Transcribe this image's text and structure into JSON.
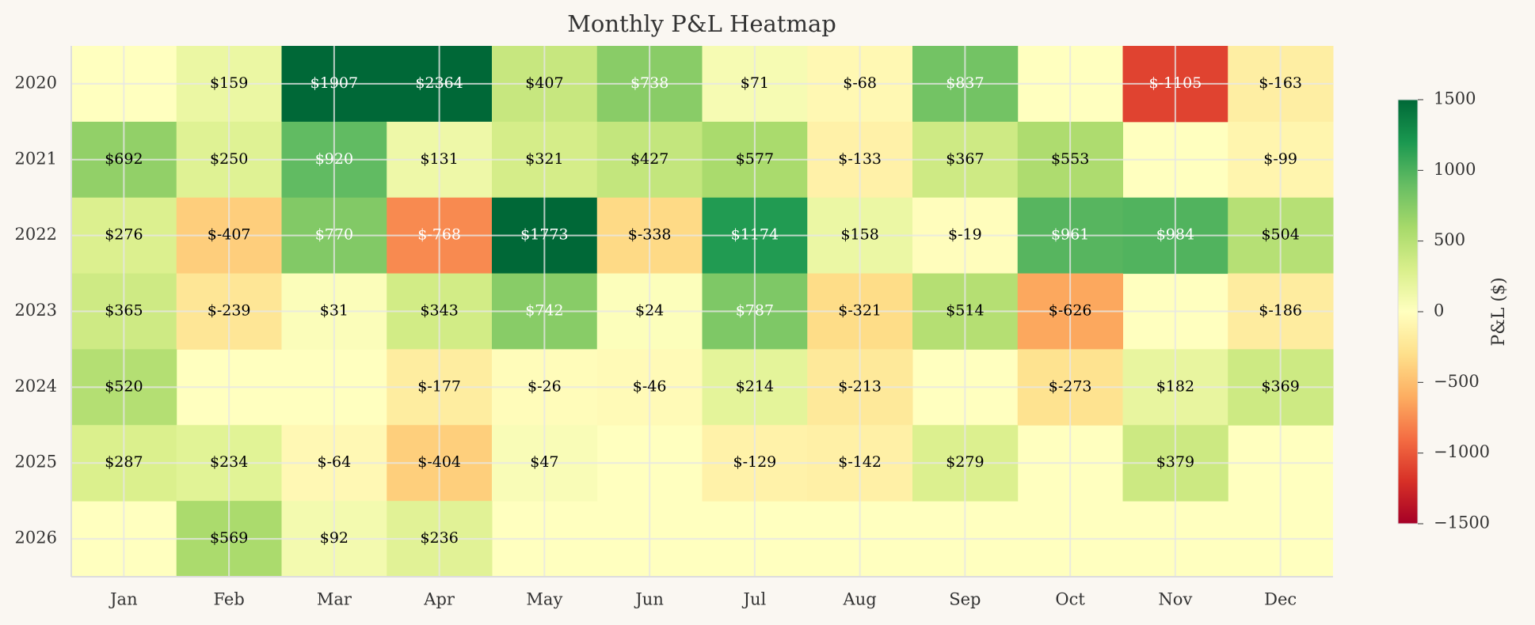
{
  "chart_data": {
    "type": "heatmap",
    "title": "Monthly P&L Heatmap",
    "x_categories": [
      "Jan",
      "Feb",
      "Mar",
      "Apr",
      "May",
      "Jun",
      "Jul",
      "Aug",
      "Sep",
      "Oct",
      "Nov",
      "Dec"
    ],
    "y_categories": [
      "2020",
      "2021",
      "2022",
      "2023",
      "2024",
      "2025",
      "2026"
    ],
    "values": [
      [
        null,
        159,
        1907,
        2364,
        407,
        738,
        71,
        -68,
        837,
        null,
        -1105,
        -163
      ],
      [
        692,
        250,
        920,
        131,
        321,
        427,
        577,
        -133,
        367,
        553,
        null,
        -99
      ],
      [
        276,
        -407,
        770,
        -768,
        1773,
        -338,
        1174,
        158,
        -19,
        961,
        984,
        504
      ],
      [
        365,
        -239,
        31,
        343,
        742,
        24,
        787,
        -321,
        514,
        -626,
        null,
        -186
      ],
      [
        520,
        null,
        null,
        -177,
        -26,
        -46,
        214,
        -213,
        null,
        -273,
        182,
        369
      ],
      [
        287,
        234,
        -64,
        -404,
        47,
        null,
        -129,
        -142,
        279,
        null,
        379,
        null
      ],
      [
        null,
        569,
        92,
        236,
        null,
        null,
        null,
        null,
        null,
        null,
        null,
        null
      ]
    ],
    "value_labels": [
      [
        null,
        "$159",
        "$1907",
        "$2364",
        "$407",
        "$738",
        "$71",
        "$-68",
        "$837",
        null,
        "$-1105",
        "$-163"
      ],
      [
        "$692",
        "$250",
        "$920",
        "$131",
        "$321",
        "$427",
        "$577",
        "$-133",
        "$367",
        "$553",
        null,
        "$-99"
      ],
      [
        "$276",
        "$-407",
        "$770",
        "$-768",
        "$1773",
        "$-338",
        "$1174",
        "$158",
        "$-19",
        "$961",
        "$984",
        "$504"
      ],
      [
        "$365",
        "$-239",
        "$31",
        "$343",
        "$742",
        "$24",
        "$787",
        "$-321",
        "$514",
        "$-626",
        null,
        "$-186"
      ],
      [
        "$520",
        null,
        null,
        "$-177",
        "$-26",
        "$-46",
        "$214",
        "$-213",
        null,
        "$-273",
        "$182",
        "$369"
      ],
      [
        "$287",
        "$234",
        "$-64",
        "$-404",
        "$47",
        null,
        "$-129",
        "$-142",
        "$279",
        null,
        "$379",
        null
      ],
      [
        null,
        "$569",
        "$92",
        "$236",
        null,
        null,
        null,
        null,
        null,
        null,
        null,
        null
      ]
    ],
    "colormap": "RdYlGn",
    "zlim": [
      -1500,
      1500
    ],
    "zticks": [
      {
        "value": -1500,
        "label": "−1500"
      },
      {
        "value": -1000,
        "label": "−1000"
      },
      {
        "value": -500,
        "label": "−500"
      },
      0,
      500,
      1000,
      1500
    ],
    "colorbar_label": "P&L ($)",
    "grid": true
  }
}
